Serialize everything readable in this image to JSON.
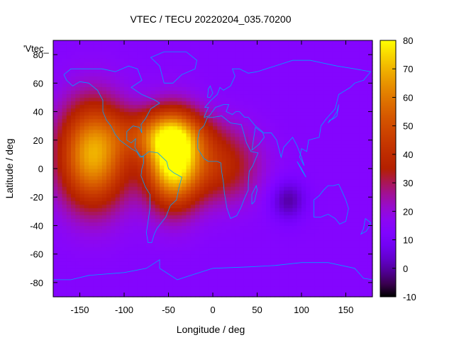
{
  "chart_data": {
    "type": "heatmap",
    "title": "VTEC / TECU 20220204_035.70200",
    "xlabel": "Longitude / deg",
    "ylabel": "Latitude / deg",
    "legend_label": "'Vtec_",
    "xlim": [
      -180,
      180
    ],
    "ylim": [
      -90,
      90
    ],
    "x_ticks": [
      -150,
      -100,
      -50,
      0,
      50,
      100,
      150
    ],
    "y_ticks": [
      -80,
      -60,
      -40,
      -20,
      0,
      20,
      40,
      60,
      80
    ],
    "colorbar": {
      "range": [
        -10,
        80
      ],
      "ticks": [
        -10,
        0,
        10,
        20,
        30,
        40,
        50,
        60,
        70,
        80
      ]
    },
    "background_tec": 14,
    "features": [
      {
        "name": "pacific-crest",
        "lon": -135,
        "lat": 10,
        "peak_tec": 55,
        "sigma_lon": 28,
        "sigma_lat": 26
      },
      {
        "name": "south-america-crest",
        "lon": -45,
        "lat": 5,
        "peak_tec": 66,
        "sigma_lon": 22,
        "sigma_lat": 22
      },
      {
        "name": "north-crest",
        "lon": -55,
        "lat": 25,
        "peak_tec": 28,
        "sigma_lon": 35,
        "sigma_lat": 12
      },
      {
        "name": "atlantic-tail",
        "lon": 10,
        "lat": 2,
        "peak_tec": 24,
        "sigma_lon": 30,
        "sigma_lat": 18
      },
      {
        "name": "indian-ocean-low",
        "lon": 85,
        "lat": -22,
        "peak_tec": -14,
        "sigma_lon": 14,
        "sigma_lat": 10
      }
    ],
    "colors": {
      "low": "#000000",
      "mid": "#8a00ff",
      "high": "#ffff00",
      "coastline": "#00a0ff"
    }
  }
}
